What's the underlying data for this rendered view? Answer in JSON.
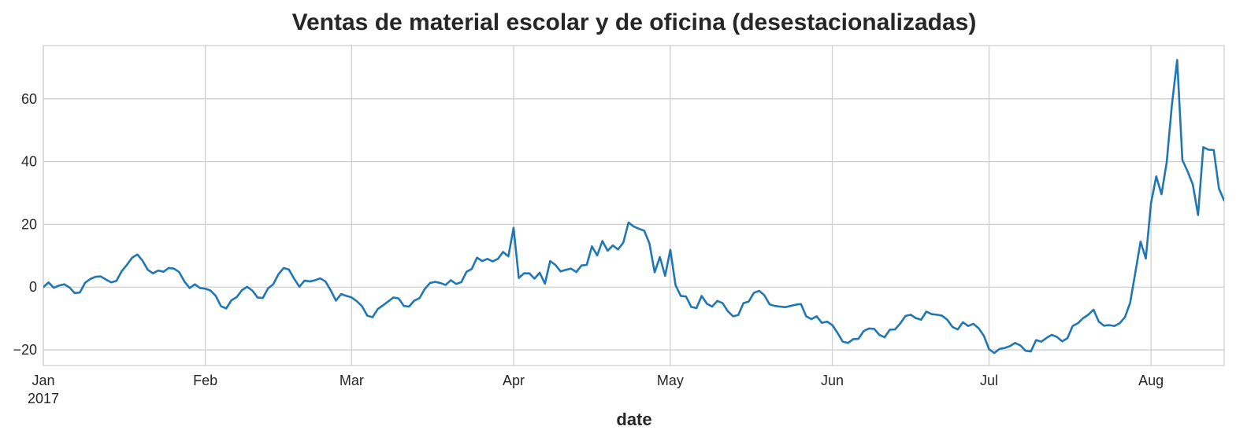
{
  "chart_data": {
    "type": "line",
    "title": "Ventas de material escolar y de oficina (desestacionalizadas)",
    "xlabel": "date",
    "ylabel": "",
    "x_range": [
      "2017-01-01",
      "2017-08-15"
    ],
    "ylim": [
      -25,
      77
    ],
    "y_ticks": [
      -20,
      0,
      20,
      40,
      60
    ],
    "y_tick_labels": [
      "−20",
      "0",
      "20",
      "40",
      "60"
    ],
    "x_ticks": [
      {
        "date": "2017-01-01",
        "label": "Jan",
        "sublabel": "2017"
      },
      {
        "date": "2017-02-01",
        "label": "Feb",
        "sublabel": ""
      },
      {
        "date": "2017-03-01",
        "label": "Mar",
        "sublabel": ""
      },
      {
        "date": "2017-04-01",
        "label": "Apr",
        "sublabel": ""
      },
      {
        "date": "2017-05-01",
        "label": "May",
        "sublabel": ""
      },
      {
        "date": "2017-06-01",
        "label": "Jun",
        "sublabel": ""
      },
      {
        "date": "2017-07-01",
        "label": "Jul",
        "sublabel": ""
      },
      {
        "date": "2017-08-01",
        "label": "Aug",
        "sublabel": ""
      }
    ],
    "grid": true,
    "color": "#1f77b4",
    "points": [
      [
        "2017-01-01",
        0.0
      ],
      [
        "2017-01-02",
        1.5
      ],
      [
        "2017-01-03",
        -0.2
      ],
      [
        "2017-01-04",
        0.5
      ],
      [
        "2017-01-05",
        0.9
      ],
      [
        "2017-01-06",
        -0.1
      ],
      [
        "2017-01-07",
        -1.9
      ],
      [
        "2017-01-08",
        -1.7
      ],
      [
        "2017-01-09",
        1.4
      ],
      [
        "2017-01-10",
        2.6
      ],
      [
        "2017-01-11",
        3.3
      ],
      [
        "2017-01-12",
        3.4
      ],
      [
        "2017-01-13",
        2.4
      ],
      [
        "2017-01-14",
        1.5
      ],
      [
        "2017-01-15",
        2.0
      ],
      [
        "2017-01-16",
        5.1
      ],
      [
        "2017-01-17",
        7.1
      ],
      [
        "2017-01-18",
        9.4
      ],
      [
        "2017-01-19",
        10.4
      ],
      [
        "2017-01-20",
        8.4
      ],
      [
        "2017-01-21",
        5.5
      ],
      [
        "2017-01-22",
        4.4
      ],
      [
        "2017-01-23",
        5.3
      ],
      [
        "2017-01-24",
        4.9
      ],
      [
        "2017-01-25",
        6.1
      ],
      [
        "2017-01-26",
        5.9
      ],
      [
        "2017-01-27",
        4.8
      ],
      [
        "2017-01-28",
        1.8
      ],
      [
        "2017-01-29",
        -0.3
      ],
      [
        "2017-01-30",
        0.9
      ],
      [
        "2017-01-31",
        -0.3
      ],
      [
        "2017-02-01",
        -0.5
      ],
      [
        "2017-02-02",
        -1.1
      ],
      [
        "2017-02-03",
        -2.8
      ],
      [
        "2017-02-04",
        -6.1
      ],
      [
        "2017-02-05",
        -6.8
      ],
      [
        "2017-02-06",
        -4.2
      ],
      [
        "2017-02-07",
        -3.2
      ],
      [
        "2017-02-08",
        -1.0
      ],
      [
        "2017-02-09",
        0.1
      ],
      [
        "2017-02-10",
        -1.1
      ],
      [
        "2017-02-11",
        -3.3
      ],
      [
        "2017-02-12",
        -3.5
      ],
      [
        "2017-02-13",
        -0.4
      ],
      [
        "2017-02-14",
        0.9
      ],
      [
        "2017-02-15",
        4.1
      ],
      [
        "2017-02-16",
        6.1
      ],
      [
        "2017-02-17",
        5.6
      ],
      [
        "2017-02-18",
        2.7
      ],
      [
        "2017-02-19",
        0.1
      ],
      [
        "2017-02-20",
        2.1
      ],
      [
        "2017-02-21",
        1.8
      ],
      [
        "2017-02-22",
        2.2
      ],
      [
        "2017-02-23",
        2.8
      ],
      [
        "2017-02-24",
        1.8
      ],
      [
        "2017-02-25",
        -1.0
      ],
      [
        "2017-02-26",
        -4.3
      ],
      [
        "2017-02-27",
        -2.2
      ],
      [
        "2017-02-28",
        -2.8
      ],
      [
        "2017-03-01",
        -3.3
      ],
      [
        "2017-03-02",
        -4.5
      ],
      [
        "2017-03-03",
        -6.1
      ],
      [
        "2017-03-04",
        -9.1
      ],
      [
        "2017-03-05",
        -9.6
      ],
      [
        "2017-03-06",
        -7.0
      ],
      [
        "2017-03-07",
        -5.8
      ],
      [
        "2017-03-08",
        -4.6
      ],
      [
        "2017-03-09",
        -3.3
      ],
      [
        "2017-03-10",
        -3.6
      ],
      [
        "2017-03-11",
        -6.0
      ],
      [
        "2017-03-12",
        -6.2
      ],
      [
        "2017-03-13",
        -4.3
      ],
      [
        "2017-03-14",
        -3.5
      ],
      [
        "2017-03-15",
        -0.6
      ],
      [
        "2017-03-16",
        1.3
      ],
      [
        "2017-03-17",
        1.7
      ],
      [
        "2017-03-18",
        1.3
      ],
      [
        "2017-03-19",
        0.7
      ],
      [
        "2017-03-20",
        2.2
      ],
      [
        "2017-03-21",
        1.0
      ],
      [
        "2017-03-22",
        1.6
      ],
      [
        "2017-03-23",
        4.9
      ],
      [
        "2017-03-24",
        5.8
      ],
      [
        "2017-03-25",
        9.4
      ],
      [
        "2017-03-26",
        8.3
      ],
      [
        "2017-03-27",
        9.0
      ],
      [
        "2017-03-28",
        8.2
      ],
      [
        "2017-03-29",
        9.0
      ],
      [
        "2017-03-30",
        11.2
      ],
      [
        "2017-03-31",
        9.8
      ],
      [
        "2017-04-01",
        18.9
      ],
      [
        "2017-04-02",
        2.9
      ],
      [
        "2017-04-03",
        4.4
      ],
      [
        "2017-04-04",
        4.4
      ],
      [
        "2017-04-05",
        2.7
      ],
      [
        "2017-04-06",
        4.6
      ],
      [
        "2017-04-07",
        1.1
      ],
      [
        "2017-04-08",
        8.3
      ],
      [
        "2017-04-09",
        7.1
      ],
      [
        "2017-04-10",
        5.0
      ],
      [
        "2017-04-11",
        5.5
      ],
      [
        "2017-04-12",
        5.9
      ],
      [
        "2017-04-13",
        4.8
      ],
      [
        "2017-04-14",
        6.9
      ],
      [
        "2017-04-15",
        7.1
      ],
      [
        "2017-04-16",
        13.0
      ],
      [
        "2017-04-17",
        10.1
      ],
      [
        "2017-04-18",
        14.7
      ],
      [
        "2017-04-19",
        11.6
      ],
      [
        "2017-04-20",
        13.3
      ],
      [
        "2017-04-21",
        12.0
      ],
      [
        "2017-04-22",
        14.2
      ],
      [
        "2017-04-23",
        20.6
      ],
      [
        "2017-04-24",
        19.3
      ],
      [
        "2017-04-25",
        18.6
      ],
      [
        "2017-04-26",
        18.0
      ],
      [
        "2017-04-27",
        13.9
      ],
      [
        "2017-04-28",
        4.7
      ],
      [
        "2017-04-29",
        9.6
      ],
      [
        "2017-04-30",
        3.6
      ],
      [
        "2017-05-01",
        11.9
      ],
      [
        "2017-05-02",
        0.6
      ],
      [
        "2017-05-03",
        -2.8
      ],
      [
        "2017-05-04",
        -3.0
      ],
      [
        "2017-05-05",
        -6.3
      ],
      [
        "2017-05-06",
        -6.7
      ],
      [
        "2017-05-07",
        -2.8
      ],
      [
        "2017-05-08",
        -5.3
      ],
      [
        "2017-05-09",
        -6.2
      ],
      [
        "2017-05-10",
        -4.4
      ],
      [
        "2017-05-11",
        -5.1
      ],
      [
        "2017-05-12",
        -7.7
      ],
      [
        "2017-05-13",
        -9.3
      ],
      [
        "2017-05-14",
        -8.9
      ],
      [
        "2017-05-15",
        -5.1
      ],
      [
        "2017-05-16",
        -4.6
      ],
      [
        "2017-05-17",
        -1.8
      ],
      [
        "2017-05-18",
        -1.2
      ],
      [
        "2017-05-19",
        -2.6
      ],
      [
        "2017-05-20",
        -5.5
      ],
      [
        "2017-05-21",
        -6.0
      ],
      [
        "2017-05-22",
        -6.2
      ],
      [
        "2017-05-23",
        -6.4
      ],
      [
        "2017-05-24",
        -6.0
      ],
      [
        "2017-05-25",
        -5.6
      ],
      [
        "2017-05-26",
        -5.4
      ],
      [
        "2017-05-27",
        -9.3
      ],
      [
        "2017-05-28",
        -10.2
      ],
      [
        "2017-05-29",
        -9.3
      ],
      [
        "2017-05-30",
        -11.4
      ],
      [
        "2017-05-31",
        -11.0
      ],
      [
        "2017-06-01",
        -12.1
      ],
      [
        "2017-06-02",
        -14.6
      ],
      [
        "2017-06-03",
        -17.4
      ],
      [
        "2017-06-04",
        -17.8
      ],
      [
        "2017-06-05",
        -16.6
      ],
      [
        "2017-06-06",
        -16.5
      ],
      [
        "2017-06-07",
        -14.0
      ],
      [
        "2017-06-08",
        -13.2
      ],
      [
        "2017-06-09",
        -13.3
      ],
      [
        "2017-06-10",
        -15.2
      ],
      [
        "2017-06-11",
        -16.0
      ],
      [
        "2017-06-12",
        -13.6
      ],
      [
        "2017-06-13",
        -13.5
      ],
      [
        "2017-06-14",
        -11.6
      ],
      [
        "2017-06-15",
        -9.2
      ],
      [
        "2017-06-16",
        -8.8
      ],
      [
        "2017-06-17",
        -9.9
      ],
      [
        "2017-06-18",
        -10.4
      ],
      [
        "2017-06-19",
        -7.8
      ],
      [
        "2017-06-20",
        -8.6
      ],
      [
        "2017-06-21",
        -8.8
      ],
      [
        "2017-06-22",
        -9.1
      ],
      [
        "2017-06-23",
        -10.4
      ],
      [
        "2017-06-24",
        -12.7
      ],
      [
        "2017-06-25",
        -13.5
      ],
      [
        "2017-06-26",
        -11.2
      ],
      [
        "2017-06-27",
        -12.4
      ],
      [
        "2017-06-28",
        -11.7
      ],
      [
        "2017-06-29",
        -13.1
      ],
      [
        "2017-06-30",
        -15.5
      ],
      [
        "2017-07-01",
        -19.8
      ],
      [
        "2017-07-02",
        -21.0
      ],
      [
        "2017-07-03",
        -19.7
      ],
      [
        "2017-07-04",
        -19.4
      ],
      [
        "2017-07-05",
        -18.8
      ],
      [
        "2017-07-06",
        -17.8
      ],
      [
        "2017-07-07",
        -18.6
      ],
      [
        "2017-07-08",
        -20.3
      ],
      [
        "2017-07-09",
        -20.5
      ],
      [
        "2017-07-10",
        -16.9
      ],
      [
        "2017-07-11",
        -17.4
      ],
      [
        "2017-07-12",
        -16.2
      ],
      [
        "2017-07-13",
        -15.2
      ],
      [
        "2017-07-14",
        -15.9
      ],
      [
        "2017-07-15",
        -17.3
      ],
      [
        "2017-07-16",
        -16.3
      ],
      [
        "2017-07-17",
        -12.4
      ],
      [
        "2017-07-18",
        -11.5
      ],
      [
        "2017-07-19",
        -9.9
      ],
      [
        "2017-07-20",
        -8.8
      ],
      [
        "2017-07-21",
        -7.2
      ],
      [
        "2017-07-22",
        -11.0
      ],
      [
        "2017-07-23",
        -12.3
      ],
      [
        "2017-07-24",
        -12.1
      ],
      [
        "2017-07-25",
        -12.4
      ],
      [
        "2017-07-26",
        -11.5
      ],
      [
        "2017-07-27",
        -9.6
      ],
      [
        "2017-07-28",
        -5.0
      ],
      [
        "2017-07-29",
        4.7
      ],
      [
        "2017-07-30",
        14.5
      ],
      [
        "2017-07-31",
        9.1
      ],
      [
        "2017-08-01",
        26.8
      ],
      [
        "2017-08-02",
        35.3
      ],
      [
        "2017-08-03",
        29.6
      ],
      [
        "2017-08-04",
        39.8
      ],
      [
        "2017-08-05",
        58.2
      ],
      [
        "2017-08-06",
        72.4
      ],
      [
        "2017-08-07",
        40.5
      ],
      [
        "2017-08-08",
        36.9
      ],
      [
        "2017-08-09",
        32.7
      ],
      [
        "2017-08-10",
        23.0
      ],
      [
        "2017-08-11",
        44.6
      ],
      [
        "2017-08-12",
        43.8
      ],
      [
        "2017-08-13",
        43.7
      ],
      [
        "2017-08-14",
        31.4
      ],
      [
        "2017-08-15",
        27.6
      ]
    ]
  }
}
